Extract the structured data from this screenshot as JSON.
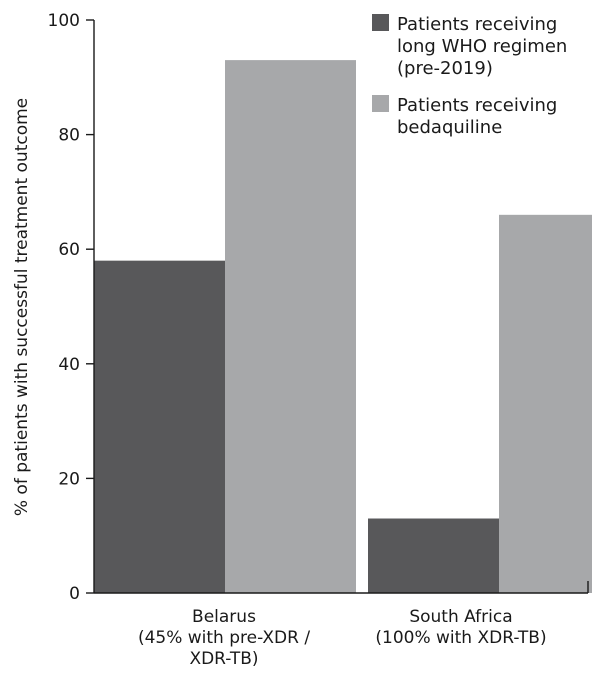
{
  "chart_data": {
    "type": "bar",
    "title": "",
    "xlabel": "",
    "ylabel": "% of patients with successful treatment outcome",
    "ylim": [
      0,
      100
    ],
    "yticks": [
      "0",
      "20",
      "40",
      "60",
      "80",
      "100"
    ],
    "grid": false,
    "legend_position": "top-right",
    "categories": [
      {
        "lines": [
          "Belarus",
          "(45% with pre-XDR /",
          "XDR-TB)"
        ]
      },
      {
        "lines": [
          "South Africa",
          "(100% with XDR-TB)"
        ]
      }
    ],
    "series": [
      {
        "legend_lines": [
          "Patients receiving",
          "long WHO regimen",
          "(pre-2019)"
        ],
        "color": "#58585a",
        "values": [
          58,
          13
        ]
      },
      {
        "legend_lines": [
          "Patients receiving",
          "bedaquiline"
        ],
        "color": "#a7a8aa",
        "values": [
          93,
          66
        ]
      }
    ]
  }
}
